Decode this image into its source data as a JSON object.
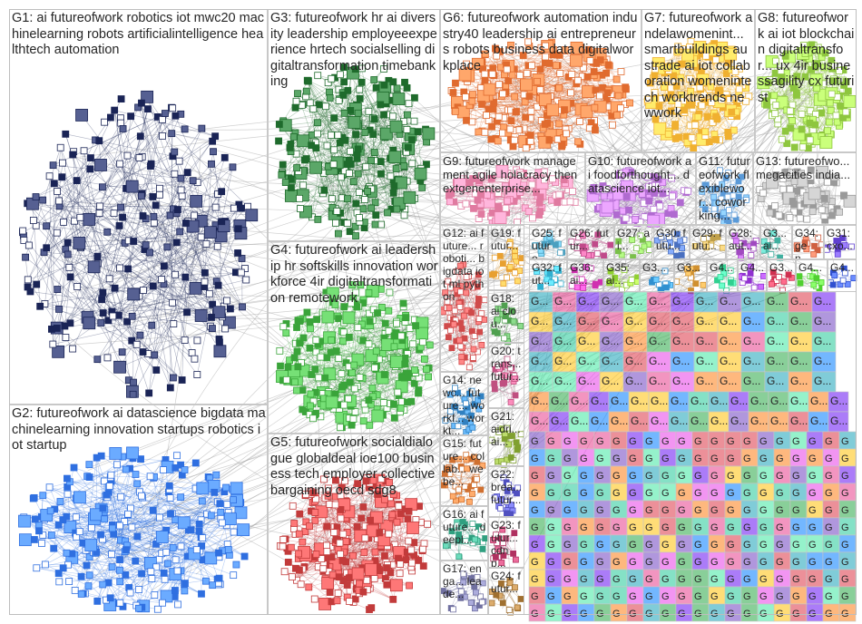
{
  "groups": [
    {
      "id": "G1",
      "label": "G1: ai futureofwork robotics iot mwc20 machinelearning robots artificialintelligence healthtech automation",
      "color": "#1a2456"
    },
    {
      "id": "G2",
      "label": "G2: futureofwork ai datascience bigdata machinelearning innovation startups robotics iot startup",
      "color": "#2f6fe0"
    },
    {
      "id": "G3",
      "label": "G3: futureofwork hr ai diversity leadership employeeexperience hrtech socialselling digitaltransformation timebanking",
      "color": "#1f6b2c"
    },
    {
      "id": "G4",
      "label": "G4: futureofwork ai leadership hr softskills innovation workforce 4ir digitaltransformation remotework",
      "color": "#3aa43a"
    },
    {
      "id": "G5",
      "label": "G5: futureofwork socialdialogue globaldeal ioe100 business tech employer collectivebargaining oecd sdg8",
      "color": "#c23b3b"
    },
    {
      "id": "G6",
      "label": "G6: futureofwork automation industry40 leadership ai entrepreneurs robots business data digitalworkplace",
      "color": "#e06b2f"
    },
    {
      "id": "G7",
      "label": "G7: futureofwork andelawomenint... smartbuildings austrade ai iot collaboration womenintech worktrends newwork",
      "color": "#f0b030"
    },
    {
      "id": "G8",
      "label": "G8: futureofwork ai iot blockchain digitaltransfor... ux 4ir businessagility cx futurist",
      "color": "#8ec63f"
    },
    {
      "id": "G9",
      "label": "G9: futureofwork management agile holacracy thenextgenenterprise...",
      "color": "#e07aa0"
    },
    {
      "id": "G10",
      "label": "G10: futureofwork ai foodforthought... datascience iot...",
      "color": "#b06ad0"
    },
    {
      "id": "G11",
      "label": "G11: futureofwork flexiblewor... coworking...",
      "color": "#5a9ad8"
    },
    {
      "id": "G13",
      "label": "G13: futureofwo... megacities india...",
      "color": "#9a9a9a"
    },
    {
      "id": "G12",
      "label": "G12: ai future... roboti... bigdata iot ml python",
      "color": "#d04a4a"
    },
    {
      "id": "G19",
      "label": "G19: futur...",
      "color": "#e8a030"
    },
    {
      "id": "G25",
      "label": "G25: future...",
      "color": "#4aa0c0"
    },
    {
      "id": "G26",
      "label": "G26: futur...",
      "color": "#c04a8a"
    },
    {
      "id": "G27",
      "label": "G27: ai...",
      "color": "#7ac04a"
    },
    {
      "id": "G30",
      "label": "G30: futu...",
      "color": "#4a70c0"
    },
    {
      "id": "G29",
      "label": "G29: futu...",
      "color": "#c0a04a"
    },
    {
      "id": "G28",
      "label": "G28: aut...",
      "color": "#a04ac0"
    },
    {
      "id": "G3x",
      "label": "G3... ai...",
      "color": "#40b0a0"
    },
    {
      "id": "G34",
      "label": "G34: gen...",
      "color": "#d06040"
    },
    {
      "id": "G31",
      "label": "G31: cxo...",
      "color": "#6040d0"
    },
    {
      "id": "G18",
      "label": "G18: ai clou...",
      "color": "#50a050"
    },
    {
      "id": "G14",
      "label": "G14: newc... future... workf... workt...",
      "color": "#3080c0"
    },
    {
      "id": "G20",
      "label": "G20: trans... futur...",
      "color": "#c05080"
    },
    {
      "id": "G21",
      "label": "G21: aidri... ai...",
      "color": "#80a030"
    },
    {
      "id": "G15",
      "label": "G15: future... collab... webe...",
      "color": "#d07030"
    },
    {
      "id": "G22",
      "label": "G22: brea... futur...",
      "color": "#5050c0"
    },
    {
      "id": "G16",
      "label": "G16: ai future... deepl...",
      "color": "#30a080"
    },
    {
      "id": "G23",
      "label": "G23: futur... cdnp...",
      "color": "#b03060"
    },
    {
      "id": "G17",
      "label": "G17: enga... leade...",
      "color": "#7070a0"
    },
    {
      "id": "G24",
      "label": "G24: futur...",
      "color": "#a07030"
    },
    {
      "id": "G32",
      "label": "G32: fut...",
      "color": "#30b0d0"
    },
    {
      "id": "G36",
      "label": "G36: ai...",
      "color": "#d030b0"
    },
    {
      "id": "G35",
      "label": "G35: ai...",
      "color": "#90d030"
    },
    {
      "id": "G37",
      "label": "G3...",
      "color": "#3090d0"
    },
    {
      "id": "G38",
      "label": "G3...",
      "color": "#d09030"
    },
    {
      "id": "G40",
      "label": "G4...",
      "color": "#30d090"
    },
    {
      "id": "G41",
      "label": "G4...",
      "color": "#9030d0"
    },
    {
      "id": "G39",
      "label": "G3...",
      "color": "#d03050"
    },
    {
      "id": "G42",
      "label": "G4...",
      "color": "#50d030"
    },
    {
      "id": "G43",
      "label": "G4...",
      "color": "#3050d0"
    }
  ],
  "small_group_label": "G...",
  "tiny_group_label": "G"
}
